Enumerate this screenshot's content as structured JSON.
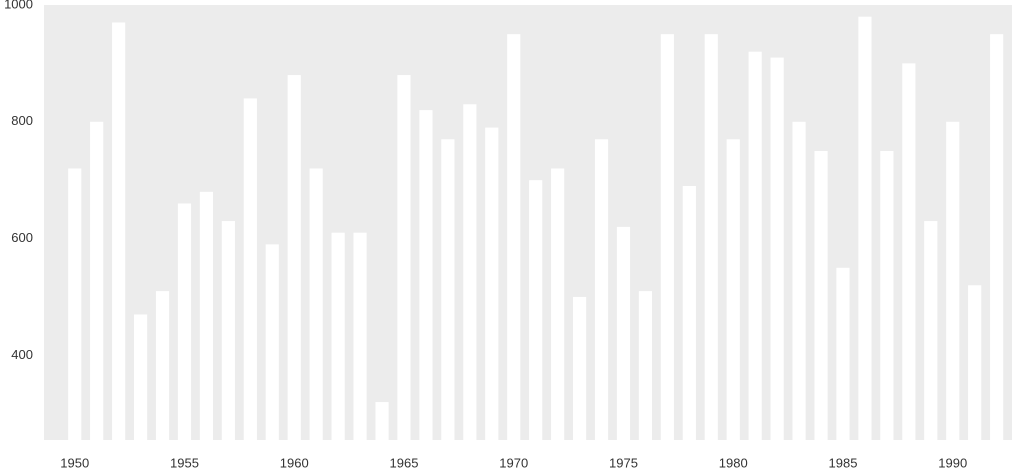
{
  "chart_data": {
    "type": "bar",
    "x": [
      1950,
      1951,
      1952,
      1953,
      1954,
      1955,
      1956,
      1957,
      1958,
      1959,
      1960,
      1961,
      1962,
      1963,
      1964,
      1965,
      1966,
      1967,
      1968,
      1969,
      1970,
      1971,
      1972,
      1973,
      1974,
      1975,
      1976,
      1977,
      1978,
      1979,
      1980,
      1981,
      1982,
      1983,
      1984,
      1985,
      1986,
      1987,
      1988,
      1989,
      1990,
      1991,
      1992
    ],
    "values": [
      720,
      800,
      970,
      470,
      510,
      660,
      680,
      630,
      840,
      590,
      880,
      720,
      610,
      610,
      320,
      880,
      820,
      770,
      830,
      790,
      950,
      700,
      720,
      500,
      770,
      620,
      510,
      950,
      690,
      950,
      770,
      920,
      910,
      800,
      750,
      550,
      980,
      750,
      900,
      630,
      800,
      520,
      950
    ],
    "color": "#ffffff",
    "background": "#ececec",
    "xlim": [
      1948.6,
      1992.7
    ],
    "xticks": [
      1950,
      1955,
      1960,
      1965,
      1970,
      1975,
      1980,
      1985,
      1990
    ],
    "ylim": [
      255,
      1000
    ],
    "yticks": [
      400,
      600,
      800,
      1000
    ]
  }
}
